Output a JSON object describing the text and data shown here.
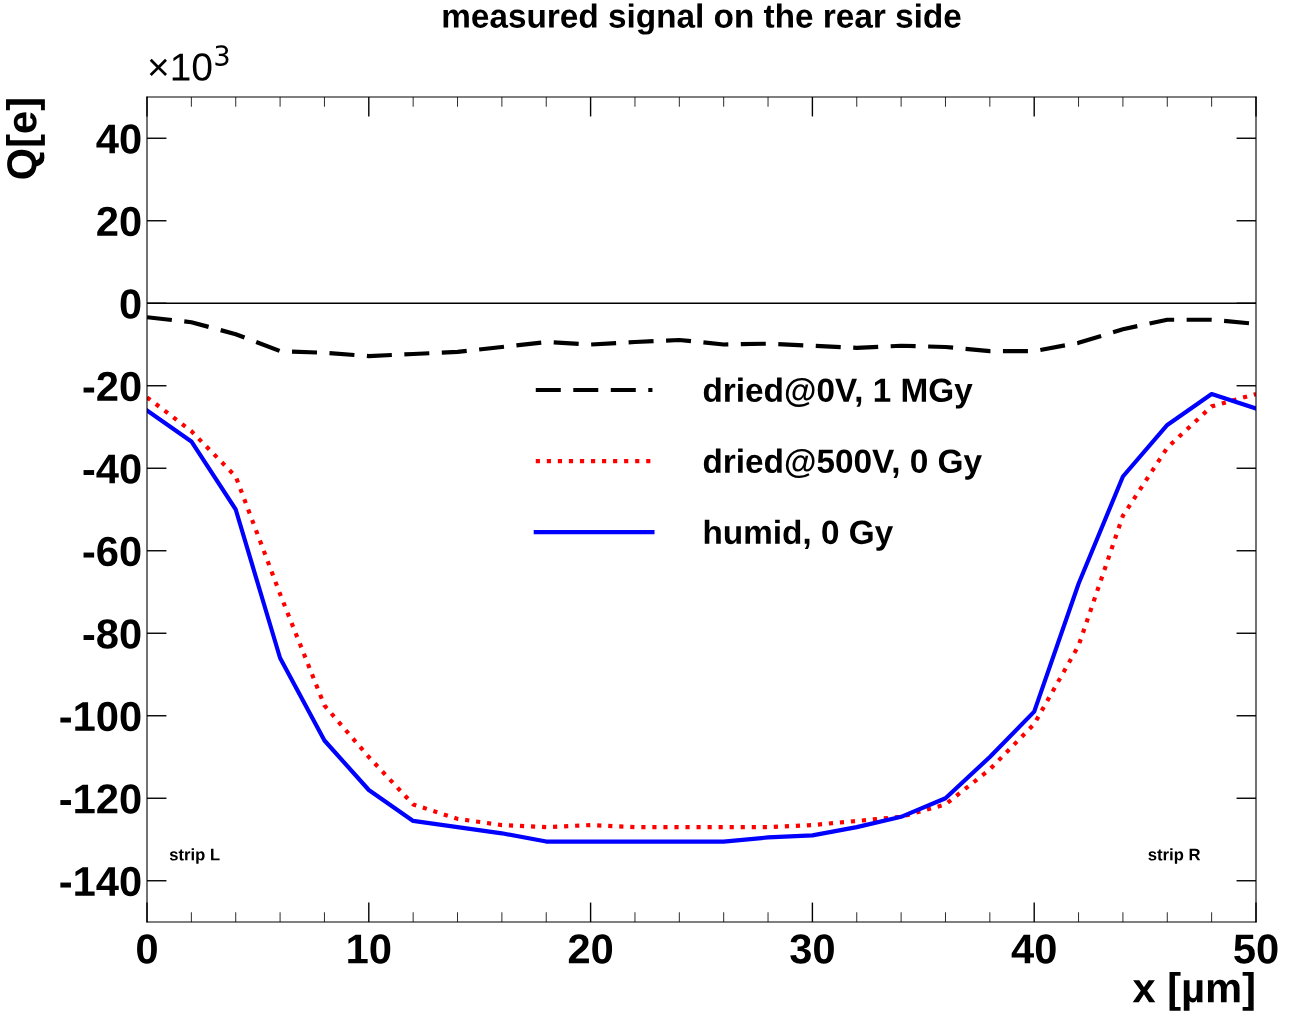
{
  "chart_data": {
    "type": "line",
    "title": "measured signal on the rear side",
    "xlabel": "x [µm]",
    "ylabel": "Q[e]",
    "x": [
      0,
      2,
      4,
      6,
      8,
      10,
      12,
      14,
      16,
      18,
      20,
      22,
      24,
      26,
      28,
      30,
      32,
      34,
      36,
      38,
      40,
      42,
      44,
      46,
      48,
      50
    ],
    "series": [
      {
        "name": "dried@0V, 1 MGy",
        "color": "#000000",
        "line_style": "dashed",
        "values": [
          -3.4,
          -4.6,
          -7.5,
          -11.6,
          -12,
          -12.8,
          -12.3,
          -11.8,
          -10.6,
          -9.4,
          -10,
          -9.4,
          -8.9,
          -10,
          -9.8,
          -10.3,
          -10.8,
          -10.3,
          -10.6,
          -11.6,
          -11.6,
          -9.6,
          -6.3,
          -4,
          -4,
          -5
        ]
      },
      {
        "name": "dried@500V, 0 Gy",
        "color": "#ff0000",
        "line_style": "dotted",
        "values": [
          -22.8,
          -31,
          -42,
          -70.5,
          -97.5,
          -110,
          -121.5,
          -125,
          -126.5,
          -127,
          -126.5,
          -127,
          -127,
          -127,
          -127,
          -126.5,
          -125.5,
          -124.5,
          -121.5,
          -113,
          -102,
          -83,
          -51.5,
          -35,
          -25,
          -22
        ]
      },
      {
        "name": "humid, 0 Gy",
        "color": "#0000ff",
        "line_style": "solid",
        "values": [
          -26,
          -33.5,
          -50,
          -86,
          -106,
          -118,
          -125.5,
          -127,
          -128.5,
          -130.5,
          -130.5,
          -130.5,
          -130.5,
          -130.5,
          -129.5,
          -129,
          -127,
          -124.5,
          -120,
          -110,
          -99,
          -68,
          -42,
          -29.5,
          -22,
          -25.5
        ]
      }
    ],
    "xlim": [
      0,
      50
    ],
    "xticks": [
      0,
      10,
      20,
      30,
      40,
      50
    ],
    "ylim": [
      -150,
      50
    ],
    "yticks": [
      -140,
      -120,
      -100,
      -80,
      -60,
      -40,
      -20,
      0,
      20,
      40
    ],
    "ref_lines": [
      {
        "axis": "y",
        "value": 0,
        "color": "#000000",
        "line_style": "solid"
      }
    ],
    "annotations": [
      "×10$^{3}$",
      "strip L",
      "strip R"
    ],
    "legend": "right",
    "grid": false,
    "marker": "none"
  }
}
